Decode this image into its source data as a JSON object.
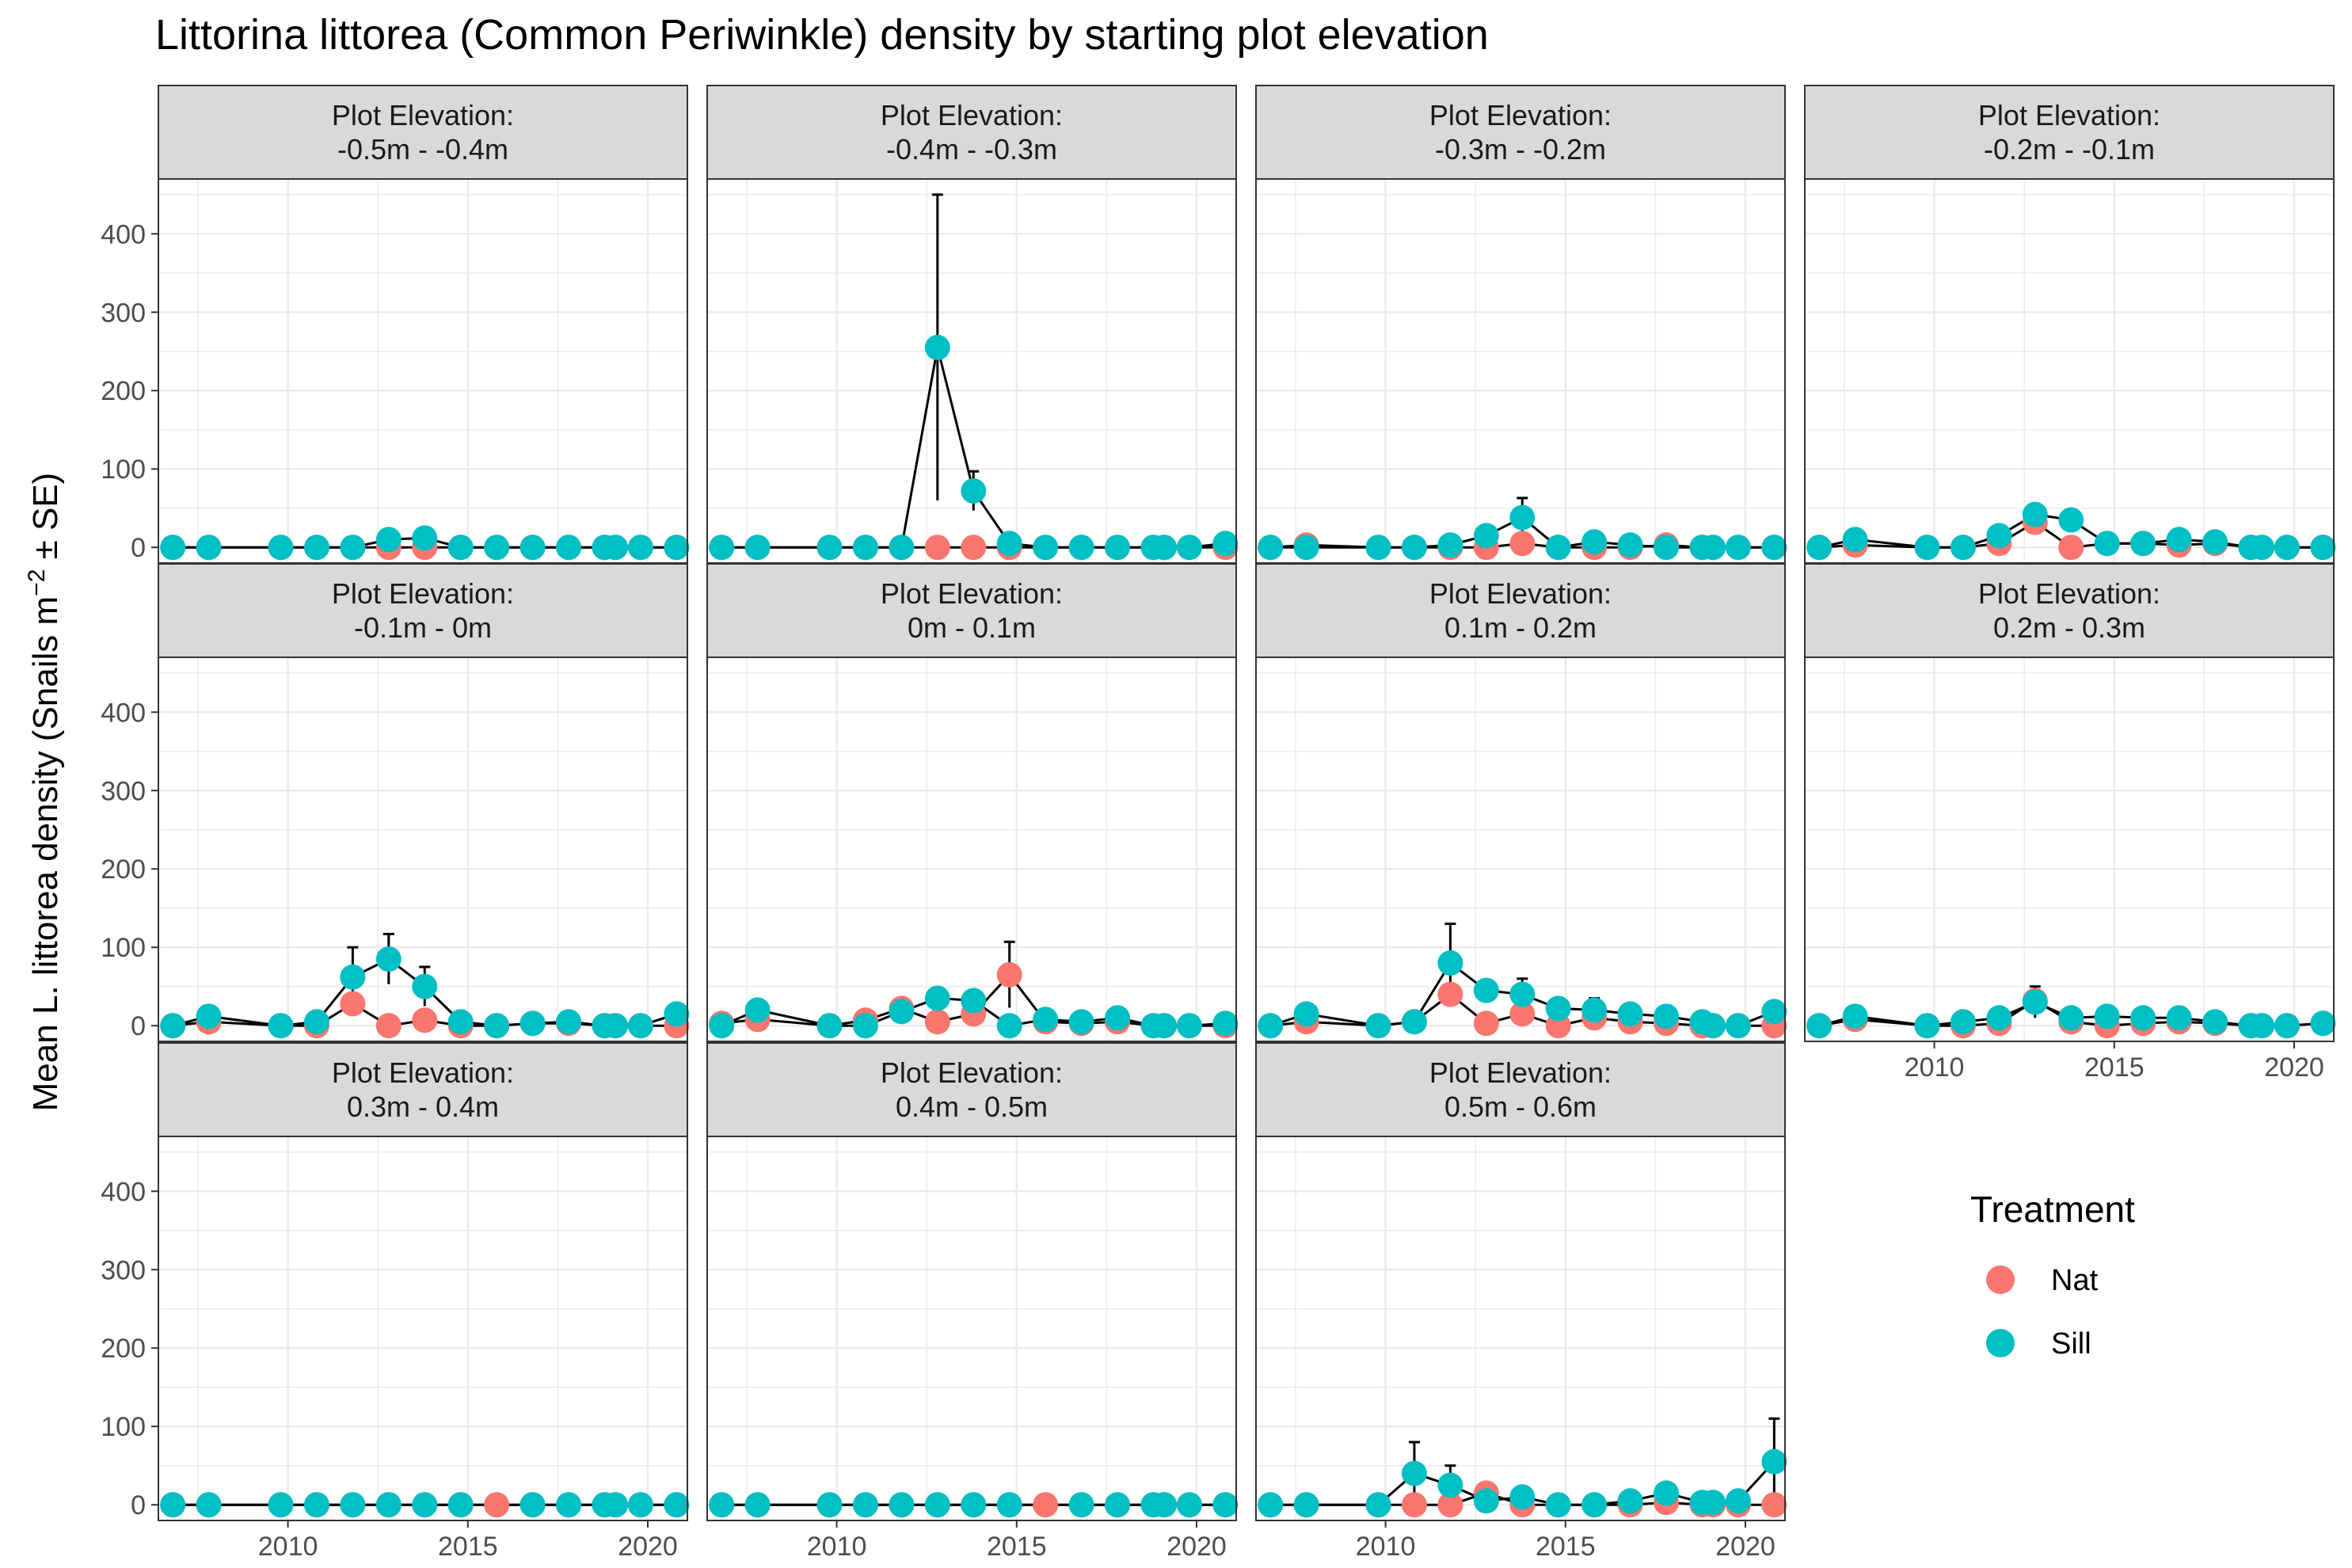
{
  "chart_data": {
    "type": "line",
    "title": "Littorina littorea (Common Periwinkle) density by starting plot elevation",
    "ylabel_main": "Mean L. littorea density (Snails m",
    "ylabel_sup": "−2",
    "ylabel_tail": " ± SE)",
    "xlabel": "",
    "ylim": [
      -20,
      470
    ],
    "xlim": [
      2006.4,
      2021.1
    ],
    "y_ticks": [
      0,
      100,
      200,
      300,
      400
    ],
    "x_ticks": [
      2010,
      2015,
      2020
    ],
    "grid": true,
    "legend": {
      "title": "Treatment",
      "placement": "right",
      "entries": [
        {
          "name": "Nat",
          "color": "#F8766D"
        },
        {
          "name": "Sill",
          "color": "#00BFC4"
        }
      ]
    },
    "colors": {
      "Nat": "#F8766D",
      "Sill": "#00BFC4",
      "line": "#000000",
      "strip": "#D9D9D9",
      "grid": "#EBEBEB"
    },
    "years": [
      2006.8,
      2007.8,
      2009.8,
      2010.8,
      2011.8,
      2012.8,
      2013.8,
      2014.8,
      2015.8,
      2016.8,
      2017.8,
      2018.8,
      2019.1,
      2019.8,
      2020.8
    ],
    "panels": [
      {
        "strip": [
          "Plot Elevation:",
          "-0.5m - -0.4m"
        ],
        "series": [
          {
            "name": "Nat",
            "values": [
              0,
              0,
              0,
              0,
              0,
              0,
              0,
              0,
              0,
              0,
              0,
              0,
              0,
              0,
              0
            ]
          },
          {
            "name": "Sill",
            "values": [
              0,
              0,
              0,
              0,
              0,
              10,
              12,
              0,
              0,
              0,
              0,
              0,
              0,
              0,
              0
            ]
          }
        ]
      },
      {
        "strip": [
          "Plot Elevation:",
          "-0.4m - -0.3m"
        ],
        "series": [
          {
            "name": "Nat",
            "values": [
              0,
              0,
              0,
              0,
              0,
              0,
              0,
              0,
              0,
              0,
              0,
              0,
              0,
              0,
              0
            ]
          },
          {
            "name": "Sill",
            "values": [
              0,
              0,
              0,
              0,
              0,
              255,
              72,
              5,
              0,
              0,
              0,
              0,
              0,
              0,
              5
            ],
            "se": [
              0,
              0,
              0,
              0,
              0,
              195,
              25,
              0,
              0,
              0,
              0,
              0,
              0,
              0,
              0
            ]
          }
        ]
      },
      {
        "strip": [
          "Plot Elevation:",
          "-0.3m - -0.2m"
        ],
        "series": [
          {
            "name": "Nat",
            "values": [
              0,
              3,
              0,
              0,
              0,
              0,
              5,
              0,
              0,
              0,
              3,
              0,
              0,
              0,
              0
            ]
          },
          {
            "name": "Sill",
            "values": [
              0,
              0,
              0,
              0,
              3,
              15,
              38,
              0,
              7,
              3,
              0,
              0,
              0,
              0,
              0
            ],
            "se": [
              0,
              0,
              0,
              0,
              0,
              0,
              25,
              0,
              0,
              0,
              0,
              0,
              0,
              0,
              0
            ]
          }
        ]
      },
      {
        "strip": [
          "Plot Elevation:",
          "-0.2m - -0.1m"
        ],
        "series": [
          {
            "name": "Nat",
            "values": [
              0,
              3,
              0,
              0,
              5,
              32,
              0,
              5,
              5,
              3,
              5,
              0,
              0,
              0,
              0
            ]
          },
          {
            "name": "Sill",
            "values": [
              0,
              10,
              0,
              0,
              15,
              42,
              35,
              5,
              5,
              10,
              7,
              0,
              0,
              0,
              0
            ]
          }
        ]
      },
      {
        "strip": [
          "Plot Elevation:",
          "-0.1m - 0m"
        ],
        "series": [
          {
            "name": "Nat",
            "values": [
              0,
              5,
              0,
              0,
              28,
              0,
              7,
              0,
              0,
              3,
              3,
              0,
              0,
              0,
              0
            ]
          },
          {
            "name": "Sill",
            "values": [
              0,
              12,
              0,
              5,
              62,
              85,
              50,
              5,
              0,
              3,
              5,
              0,
              0,
              0,
              15
            ],
            "se": [
              0,
              0,
              0,
              0,
              38,
              32,
              25,
              0,
              0,
              0,
              0,
              0,
              0,
              0,
              0
            ]
          }
        ]
      },
      {
        "strip": [
          "Plot Elevation:",
          "0m - 0.1m"
        ],
        "series": [
          {
            "name": "Nat",
            "values": [
              3,
              8,
              0,
              7,
              22,
              5,
              15,
              65,
              5,
              3,
              5,
              0,
              0,
              0,
              0
            ],
            "se": [
              0,
              0,
              0,
              0,
              0,
              0,
              0,
              42,
              0,
              0,
              0,
              0,
              0,
              0,
              0
            ]
          },
          {
            "name": "Sill",
            "values": [
              0,
              20,
              0,
              0,
              18,
              35,
              32,
              0,
              8,
              5,
              10,
              0,
              0,
              0,
              3
            ]
          }
        ]
      },
      {
        "strip": [
          "Plot Elevation:",
          "0.1m - 0.2m"
        ],
        "series": [
          {
            "name": "Nat",
            "values": [
              0,
              5,
              0,
              5,
              40,
              3,
              15,
              0,
              10,
              5,
              3,
              0,
              0,
              0,
              0
            ]
          },
          {
            "name": "Sill",
            "values": [
              0,
              15,
              0,
              5,
              80,
              45,
              40,
              22,
              20,
              15,
              12,
              5,
              0,
              0,
              18
            ],
            "se": [
              0,
              0,
              0,
              0,
              50,
              10,
              20,
              0,
              15,
              0,
              0,
              0,
              0,
              0,
              0
            ]
          }
        ]
      },
      {
        "strip": [
          "Plot Elevation:",
          "0.2m - 0.3m"
        ],
        "series": [
          {
            "name": "Nat",
            "values": [
              0,
              8,
              0,
              0,
              3,
              32,
              5,
              0,
              3,
              5,
              3,
              0,
              0,
              0,
              3
            ]
          },
          {
            "name": "Sill",
            "values": [
              0,
              12,
              0,
              5,
              10,
              30,
              10,
              12,
              10,
              10,
              5,
              0,
              0,
              0,
              3
            ],
            "se": [
              0,
              0,
              0,
              0,
              0,
              20,
              0,
              0,
              0,
              0,
              0,
              0,
              0,
              0,
              0
            ]
          }
        ]
      },
      {
        "strip": [
          "Plot Elevation:",
          "0.3m - 0.4m"
        ],
        "series": [
          {
            "name": "Nat",
            "values": [
              0,
              0,
              0,
              0,
              0,
              0,
              0,
              0,
              0,
              0,
              0,
              0,
              0,
              0,
              0
            ]
          },
          {
            "name": "Sill",
            "values": [
              0,
              0,
              0,
              0,
              0,
              0,
              0,
              0,
              null,
              0,
              0,
              0,
              0,
              0,
              0
            ]
          }
        ]
      },
      {
        "strip": [
          "Plot Elevation:",
          "0.4m - 0.5m"
        ],
        "series": [
          {
            "name": "Nat",
            "values": [
              0,
              0,
              0,
              0,
              0,
              0,
              0,
              0,
              0,
              0,
              0,
              0,
              0,
              0,
              0
            ]
          },
          {
            "name": "Sill",
            "values": [
              0,
              0,
              0,
              0,
              0,
              0,
              0,
              0,
              null,
              0,
              0,
              0,
              0,
              0,
              0
            ]
          }
        ]
      },
      {
        "strip": [
          "Plot Elevation:",
          "0.5m - 0.6m"
        ],
        "series": [
          {
            "name": "Nat",
            "values": [
              0,
              0,
              0,
              0,
              0,
              15,
              0,
              0,
              0,
              0,
              3,
              0,
              0,
              0,
              0
            ]
          },
          {
            "name": "Sill",
            "values": [
              0,
              0,
              0,
              40,
              25,
              5,
              10,
              0,
              0,
              5,
              15,
              3,
              3,
              5,
              55
            ],
            "se": [
              0,
              0,
              0,
              40,
              25,
              0,
              0,
              0,
              0,
              0,
              0,
              0,
              0,
              0,
              55
            ]
          }
        ]
      }
    ]
  }
}
